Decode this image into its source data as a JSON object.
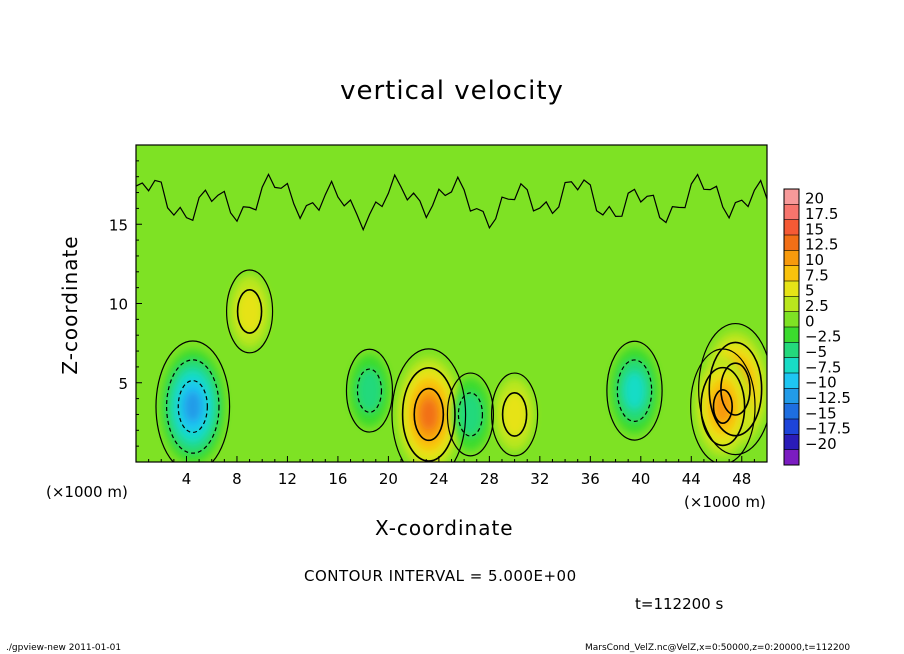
{
  "chart_data": {
    "type": "heatmap",
    "title": "vertical velocity",
    "xlabel": "X-coordinate",
    "ylabel": "Z-coordinate",
    "x_unit": "(×1000 m)",
    "x_ticks": [
      4,
      8,
      12,
      16,
      20,
      24,
      28,
      32,
      36,
      40,
      44,
      48
    ],
    "y_ticks": [
      5,
      10,
      15
    ],
    "xlim": [
      0,
      50
    ],
    "ylim": [
      0,
      20
    ],
    "contour_interval_text": "CONTOUR INTERVAL = 5.000E+00",
    "time_text": "t=112200 s",
    "colorbar": {
      "labels": [
        "20",
        "17.5",
        "15",
        "12.5",
        "10",
        "7.5",
        "5",
        "2.5",
        "0",
        "−2.5",
        "−5",
        "−7.5",
        "−10",
        "−12.5",
        "−15",
        "−17.5",
        "−20"
      ],
      "colors": [
        "#f79a9a",
        "#f7756d",
        "#f55a35",
        "#f26f16",
        "#f79a0c",
        "#f9c20c",
        "#e6e317",
        "#b9e61d",
        "#7ee224",
        "#3bdb2e",
        "#24d97c",
        "#18dcc6",
        "#1ec6f2",
        "#229be8",
        "#1e6ee0",
        "#1d44d9",
        "#2a1cb8",
        "#7b1cc1"
      ]
    },
    "features": [
      {
        "kind": "updraft",
        "x": 23.2,
        "z": 3.0,
        "peak": 12.5
      },
      {
        "kind": "updraft",
        "x": 47.5,
        "z": 4.6,
        "peak": 12.5
      },
      {
        "kind": "updraft",
        "x": 46.5,
        "z": 3.5,
        "peak": 10
      },
      {
        "kind": "updraft",
        "x": 30.0,
        "z": 3.0,
        "peak": 5
      },
      {
        "kind": "updraft",
        "x": 9.0,
        "z": 9.5,
        "peak": 5
      },
      {
        "kind": "downdraft",
        "x": 4.5,
        "z": 3.5,
        "peak": -12.5
      },
      {
        "kind": "downdraft",
        "x": 39.5,
        "z": 4.5,
        "peak": -7.5
      },
      {
        "kind": "downdraft",
        "x": 26.5,
        "z": 3.0,
        "peak": -5
      },
      {
        "kind": "downdraft",
        "x": 18.5,
        "z": 4.5,
        "peak": -5
      }
    ]
  },
  "footer": {
    "left": "./gpview-new   2011-01-01",
    "right": "MarsCond_VelZ.nc@VelZ,x=0:50000,z=0:20000,t=112200"
  }
}
